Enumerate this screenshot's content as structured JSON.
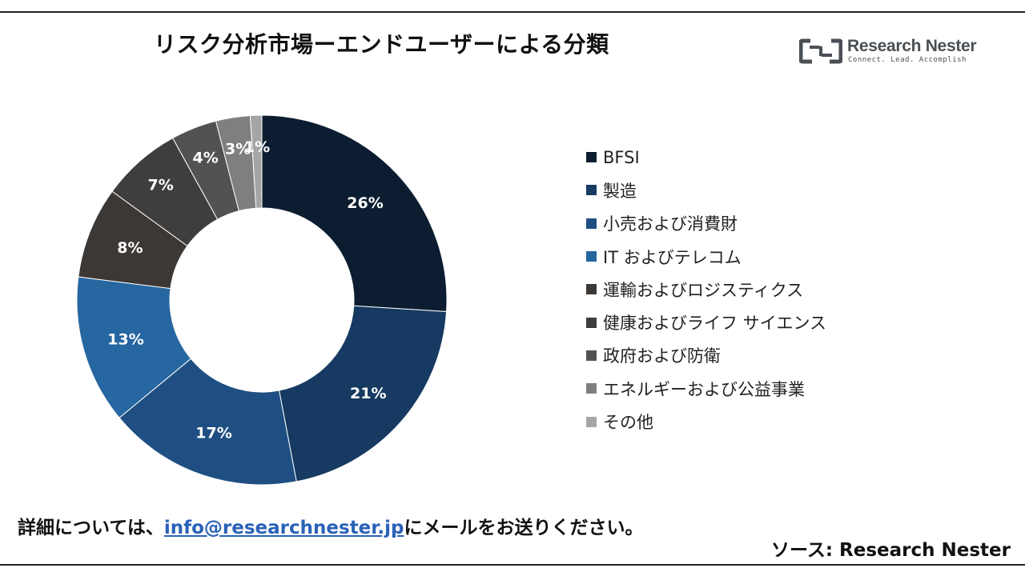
{
  "header": {
    "title": "リスク分析市場ーエンドユーザーによる分類"
  },
  "logo": {
    "name": "Research Nester",
    "tagline": "Connect. Lead. Accomplish",
    "color": "#4a4f55"
  },
  "chart_data": {
    "type": "donut",
    "title": "リスク分析市場ーエンドユーザーによる分類",
    "legend_position": "right",
    "value_unit": "%",
    "series": [
      {
        "name": "BFSI",
        "value": 26,
        "color": "#0c1d31"
      },
      {
        "name": "製造",
        "value": 21,
        "color": "#163a61"
      },
      {
        "name": "小売および消費財",
        "value": 17,
        "color": "#1f4f82"
      },
      {
        "name": "IT およびテレコム",
        "value": 13,
        "color": "#2666a1"
      },
      {
        "name": "運輸およびロジスティクス",
        "value": 8,
        "color": "#3c3836"
      },
      {
        "name": "健康およびライフ サイエンス",
        "value": 7,
        "color": "#403e3d"
      },
      {
        "name": "政府および防衛",
        "value": 4,
        "color": "#525252"
      },
      {
        "name": "エネルギーおよび公益事業",
        "value": 3,
        "color": "#7f7f7f"
      },
      {
        "name": "その他",
        "value": 1,
        "color": "#a5a5a5"
      }
    ]
  },
  "footer": {
    "prefix": "詳細については、",
    "email": "info@researchnester.jp",
    "suffix": "にメールをお送りください。"
  },
  "source": {
    "text": "ソース: Research Nester"
  }
}
